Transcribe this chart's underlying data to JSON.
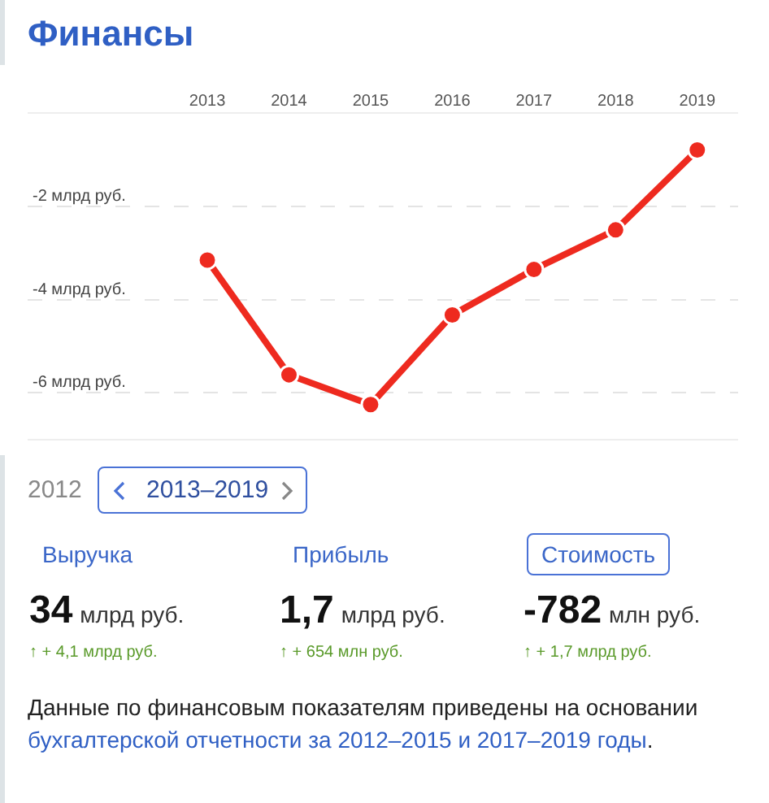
{
  "chart_data": {
    "type": "line",
    "title": "Финансы",
    "categories": [
      "2013",
      "2014",
      "2015",
      "2016",
      "2017",
      "2018",
      "2019"
    ],
    "series": [
      {
        "color": "#ee2a1f",
        "values": [
          -3.15,
          -5.62,
          -6.26,
          -4.33,
          -3.35,
          -2.5,
          -0.78
        ]
      }
    ],
    "ylim": [
      -7,
      0
    ],
    "yticks": [
      {
        "value": -2,
        "label": "-2 млрд руб."
      },
      {
        "value": -4,
        "label": "-4 млрд руб."
      },
      {
        "value": -6,
        "label": "-6 млрд руб."
      }
    ],
    "grid": "y",
    "marker": "circle",
    "line_style": "solid",
    "annotations": [
      "2012",
      "2013–2019",
      "Выручка",
      "34",
      "млрд руб.",
      "↑ + 4,1 млрд руб.",
      "Прибыль",
      "1,7",
      "млрд руб.",
      "↑ + 654 млн руб.",
      "Стоимость",
      "-782",
      "млн руб.",
      "↑ + 1,7 млрд руб.",
      "Данные по финансовым показателям приведены на основании ",
      "бухгалтерской отчетности за 2012–2015 и 2017–2019 годы",
      "."
    ]
  }
}
